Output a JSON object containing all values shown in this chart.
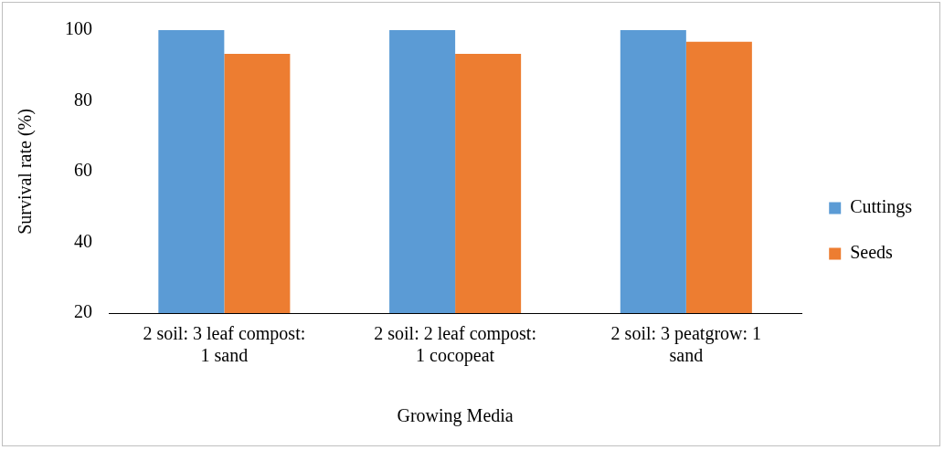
{
  "chart_data": {
    "type": "bar",
    "xlabel": "Growing Media",
    "ylabel": "Survival rate (%)",
    "categories": [
      "2 soil: 3 leaf compost: 1 sand",
      "2 soil: 2 leaf compost: 1 cocopeat",
      "2 soil: 3 peatgrow: 1 sand"
    ],
    "series": [
      {
        "name": "Cuttings",
        "color": "#5b9bd5",
        "values": [
          100,
          100,
          100
        ]
      },
      {
        "name": "Seeds",
        "color": "#ed7d31",
        "values": [
          93.3,
          93.3,
          96.7
        ]
      }
    ],
    "ylim": [
      20,
      100
    ],
    "yticks": [
      20,
      40,
      60,
      80,
      100
    ],
    "grid": false,
    "legend": "right"
  }
}
